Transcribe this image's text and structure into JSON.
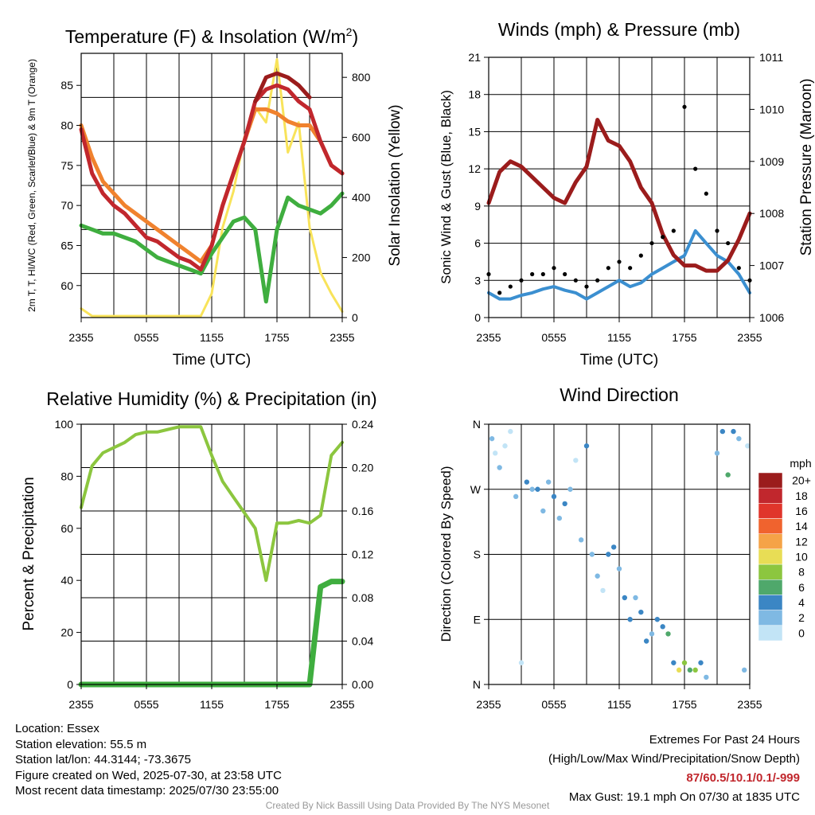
{
  "panels": {
    "temperature": {
      "title": "Temperature (F) & Insolation (W/m",
      "title_sup": "2",
      "title_end": ")",
      "xlabel": "Time (UTC)",
      "ylabel_left": "2m T, T, HI/WC (Red, Green, Scarlet/Blue) & 9m T (Orange)",
      "ylabel_right": "Solar Insolation (Yellow)",
      "yticks_left": [
        "60",
        "65",
        "70",
        "75",
        "80",
        "85"
      ],
      "yticks_right": [
        "0",
        "200",
        "400",
        "600",
        "800"
      ],
      "xticks": [
        "2355",
        "0555",
        "1155",
        "1755",
        "2355"
      ]
    },
    "winds": {
      "title": "Winds (mph) & Pressure (mb)",
      "xlabel": "Time (UTC)",
      "ylabel_left": "Sonic Wind & Gust (Blue, Black)",
      "ylabel_right": "Station Pressure (Maroon)",
      "yticks_left": [
        "0",
        "3",
        "6",
        "9",
        "12",
        "15",
        "18",
        "21"
      ],
      "yticks_right": [
        "1006",
        "1007",
        "1008",
        "1009",
        "1010",
        "1011"
      ],
      "xticks": [
        "2355",
        "0555",
        "1155",
        "1755",
        "2355"
      ]
    },
    "humidity": {
      "title": "Relative Humidity (%) & Precipitation (in)",
      "ylabel_left": "Percent & Precipitation",
      "yticks_left": [
        "0",
        "20",
        "40",
        "60",
        "80",
        "100"
      ],
      "yticks_right": [
        "0.00",
        "0.04",
        "0.08",
        "0.12",
        "0.16",
        "0.20",
        "0.24"
      ],
      "xticks": [
        "2355",
        "0555",
        "1155",
        "1755",
        "2355"
      ]
    },
    "direction": {
      "title": "Wind Direction",
      "ylabel_left": "Direction (Colored By Speed)",
      "yticks_left": [
        "N",
        "E",
        "S",
        "W",
        "N"
      ],
      "xticks": [
        "2355",
        "0555",
        "1155",
        "1755",
        "2355"
      ],
      "colorbar_unit": "mph",
      "colorbar_labels": [
        "20+",
        "18",
        "16",
        "14",
        "12",
        "10",
        "8",
        "6",
        "4",
        "2",
        "0"
      ],
      "colorbar_colors": [
        "#9b1c1c",
        "#c1272d",
        "#e0352b",
        "#f0632e",
        "#f5a347",
        "#e8dd55",
        "#8cc63f",
        "#4fa86b",
        "#3b86c4",
        "#7fb9e3",
        "#c2e4f6"
      ]
    }
  },
  "info": {
    "location": "Location: Essex",
    "elevation": "Station elevation: 55.5 m",
    "latlon": "Station lat/lon: 44.3144; -73.3675",
    "created": "Figure created on Wed, 2025-07-30, at 23:58 UTC",
    "recent": "Most recent data timestamp: 2025/07/30 23:55:00",
    "extremes_title": "Extremes For Past 24 Hours",
    "extremes_sub": "(High/Low/Max Wind/Precipitation/Snow Depth)",
    "extremes_values": "87/60.5/10.1/0.1/-999",
    "max_gust": "Max Gust: 19.1 mph On 07/30 at 1835 UTC",
    "credit": "Created By Nick Bassill Using Data Provided By The NYS Mesonet"
  },
  "colors": {
    "temp_red": "#c1272d",
    "dewpoint_green": "#3fae3f",
    "heat_index_scarlet": "#9b1c1c",
    "temp_9m_orange": "#f0822e",
    "insolation_yellow": "#f8e35a",
    "wind_blue": "#3b8fd0",
    "gust_black": "#000000",
    "pressure_maroon": "#9b1c1c",
    "rh_green": "#8cc63f",
    "precip_green": "#3fae3f"
  },
  "chart_data": [
    {
      "type": "line",
      "title": "Temperature (F) & Insolation (W/m2)",
      "xlabel": "Time (UTC)",
      "ylabel": "2m T, Td, HI/WC (Red, Green, Scarlet/Blue) & 9m T (Orange)",
      "y2label": "Solar Insolation (Yellow)",
      "x_hours": [
        0,
        1,
        2,
        3,
        4,
        5,
        6,
        7,
        8,
        9,
        10,
        11,
        12,
        13,
        14,
        15,
        16,
        17,
        18,
        19,
        20,
        21,
        22,
        23,
        24
      ],
      "ylim": [
        56,
        89
      ],
      "y2lim": [
        0,
        880
      ],
      "series": [
        {
          "name": "2m T",
          "axis": "left",
          "values": [
            79.5,
            74,
            71.5,
            70,
            69,
            67.5,
            66,
            65.5,
            64.5,
            63.5,
            63,
            62,
            65,
            70,
            74,
            78,
            83,
            84.5,
            85,
            84.5,
            83,
            82,
            78,
            75,
            74
          ]
        },
        {
          "name": "9m T",
          "axis": "left",
          "values": [
            80,
            76,
            73,
            71.5,
            70,
            69,
            68,
            67,
            66,
            65,
            64,
            63,
            65,
            70,
            74,
            78,
            82,
            82,
            81.5,
            80.5,
            80,
            80,
            78,
            75,
            74
          ]
        },
        {
          "name": "Td",
          "axis": "left",
          "values": [
            67.5,
            67,
            66.5,
            66.5,
            66,
            65.5,
            64.5,
            63.5,
            63,
            62.5,
            62,
            61.5,
            64,
            66,
            68,
            68.5,
            67,
            58,
            67,
            71,
            70,
            69.5,
            69,
            70,
            71.5
          ]
        },
        {
          "name": "HI",
          "axis": "left",
          "values": [
            null,
            null,
            null,
            null,
            null,
            null,
            null,
            null,
            null,
            null,
            null,
            null,
            null,
            null,
            null,
            null,
            83,
            86,
            86.5,
            86,
            85,
            83.5,
            null,
            null,
            null
          ]
        },
        {
          "name": "Insolation",
          "axis": "right",
          "values": [
            30,
            5,
            5,
            5,
            5,
            5,
            5,
            5,
            5,
            5,
            5,
            5,
            80,
            300,
            420,
            600,
            700,
            650,
            860,
            550,
            650,
            300,
            150,
            80,
            20
          ]
        }
      ]
    },
    {
      "type": "line",
      "title": "Winds (mph) & Pressure (mb)",
      "xlabel": "Time (UTC)",
      "ylabel": "Sonic Wind & Gust (Blue, Black)",
      "y2label": "Station Pressure (Maroon)",
      "x_hours": [
        0,
        1,
        2,
        3,
        4,
        5,
        6,
        7,
        8,
        9,
        10,
        11,
        12,
        13,
        14,
        15,
        16,
        17,
        18,
        19,
        20,
        21,
        22,
        23,
        24
      ],
      "ylim": [
        0,
        21
      ],
      "y2lim": [
        1006,
        1011
      ],
      "series": [
        {
          "name": "Sonic Wind",
          "axis": "left",
          "values": [
            2,
            1.5,
            1.5,
            1.8,
            2,
            2.3,
            2.5,
            2.2,
            2,
            1.5,
            2,
            2.5,
            3,
            2.5,
            2.8,
            3.5,
            4,
            4.5,
            5,
            7,
            6,
            5,
            4.5,
            3.5,
            2
          ]
        },
        {
          "name": "Gust",
          "axis": "left",
          "values": [
            3.5,
            2,
            2.5,
            3,
            3.5,
            3.5,
            4,
            3.5,
            3,
            2.5,
            3,
            4,
            4.5,
            4,
            5,
            6,
            6.5,
            7,
            17,
            12,
            10,
            7,
            6,
            4,
            3
          ]
        },
        {
          "name": "Station Pressure",
          "axis": "right",
          "values": [
            1008.2,
            1008.8,
            1009,
            1008.9,
            1008.7,
            1008.5,
            1008.3,
            1008.2,
            1008.6,
            1008.9,
            1009.8,
            1009.4,
            1009.3,
            1009,
            1008.5,
            1008.2,
            1007.6,
            1007.2,
            1007,
            1007,
            1006.9,
            1006.9,
            1007.1,
            1007.5,
            1008
          ]
        }
      ]
    },
    {
      "type": "line",
      "title": "Relative Humidity (%) & Precipitation (in)",
      "ylabel": "Percent & Precipitation",
      "x_hours": [
        0,
        1,
        2,
        3,
        4,
        5,
        6,
        7,
        8,
        9,
        10,
        11,
        12,
        13,
        14,
        15,
        16,
        17,
        18,
        19,
        20,
        21,
        22,
        23,
        24
      ],
      "ylim": [
        0,
        100
      ],
      "y2lim": [
        0,
        0.24
      ],
      "series": [
        {
          "name": "Relative Humidity",
          "axis": "left",
          "values": [
            68,
            84,
            89,
            91,
            93,
            96,
            97,
            97,
            98,
            99,
            99,
            99,
            88,
            78,
            72,
            66,
            60,
            40,
            62,
            62,
            63,
            62,
            65,
            88,
            93
          ]
        },
        {
          "name": "Precipitation",
          "axis": "right",
          "values": [
            0,
            0,
            0,
            0,
            0,
            0,
            0,
            0,
            0,
            0,
            0,
            0,
            0,
            0,
            0,
            0,
            0,
            0,
            0,
            0,
            0,
            0,
            0.09,
            0.095,
            0.095
          ]
        }
      ]
    },
    {
      "type": "scatter",
      "title": "Wind Direction",
      "ylabel": "Direction (Colored By Speed)",
      "x_hours_range": [
        0,
        24
      ],
      "y_deg_range": [
        0,
        360
      ],
      "points": [
        {
          "x": 0.3,
          "y": 340,
          "speed": 2
        },
        {
          "x": 0.6,
          "y": 320,
          "speed": 0
        },
        {
          "x": 1.0,
          "y": 300,
          "speed": 2
        },
        {
          "x": 1.5,
          "y": 330,
          "speed": 0
        },
        {
          "x": 2.0,
          "y": 350,
          "speed": 0
        },
        {
          "x": 2.5,
          "y": 260,
          "speed": 2
        },
        {
          "x": 3.0,
          "y": 30,
          "speed": 0
        },
        {
          "x": 3.5,
          "y": 280,
          "speed": 4
        },
        {
          "x": 4.0,
          "y": 270,
          "speed": 2
        },
        {
          "x": 4.5,
          "y": 270,
          "speed": 4
        },
        {
          "x": 5.0,
          "y": 240,
          "speed": 2
        },
        {
          "x": 5.5,
          "y": 280,
          "speed": 2
        },
        {
          "x": 6.0,
          "y": 260,
          "speed": 4
        },
        {
          "x": 6.5,
          "y": 230,
          "speed": 2
        },
        {
          "x": 7.0,
          "y": 250,
          "speed": 4
        },
        {
          "x": 7.5,
          "y": 270,
          "speed": 2
        },
        {
          "x": 8.0,
          "y": 310,
          "speed": 0
        },
        {
          "x": 8.5,
          "y": 200,
          "speed": 2
        },
        {
          "x": 9.0,
          "y": 330,
          "speed": 4
        },
        {
          "x": 9.5,
          "y": 180,
          "speed": 2
        },
        {
          "x": 10.0,
          "y": 150,
          "speed": 2
        },
        {
          "x": 10.5,
          "y": 130,
          "speed": 0
        },
        {
          "x": 11.0,
          "y": 180,
          "speed": 4
        },
        {
          "x": 11.5,
          "y": 190,
          "speed": 4
        },
        {
          "x": 12.0,
          "y": 160,
          "speed": 2
        },
        {
          "x": 12.5,
          "y": 120,
          "speed": 4
        },
        {
          "x": 13.0,
          "y": 90,
          "speed": 4
        },
        {
          "x": 13.5,
          "y": 120,
          "speed": 2
        },
        {
          "x": 14.0,
          "y": 100,
          "speed": 4
        },
        {
          "x": 14.5,
          "y": 60,
          "speed": 4
        },
        {
          "x": 15.0,
          "y": 70,
          "speed": 2
        },
        {
          "x": 15.5,
          "y": 90,
          "speed": 4
        },
        {
          "x": 16.0,
          "y": 80,
          "speed": 4
        },
        {
          "x": 16.5,
          "y": 70,
          "speed": 6
        },
        {
          "x": 17.0,
          "y": 30,
          "speed": 4
        },
        {
          "x": 17.5,
          "y": 20,
          "speed": 10
        },
        {
          "x": 18.0,
          "y": 30,
          "speed": 8
        },
        {
          "x": 18.5,
          "y": 20,
          "speed": 6
        },
        {
          "x": 19.0,
          "y": 20,
          "speed": 8
        },
        {
          "x": 19.5,
          "y": 30,
          "speed": 4
        },
        {
          "x": 20.0,
          "y": 10,
          "speed": 2
        },
        {
          "x": 21.0,
          "y": 320,
          "speed": 2
        },
        {
          "x": 21.5,
          "y": 350,
          "speed": 4
        },
        {
          "x": 22.0,
          "y": 290,
          "speed": 6
        },
        {
          "x": 22.5,
          "y": 350,
          "speed": 4
        },
        {
          "x": 23.0,
          "y": 340,
          "speed": 2
        },
        {
          "x": 23.5,
          "y": 20,
          "speed": 2
        },
        {
          "x": 23.8,
          "y": 330,
          "speed": 0
        }
      ]
    }
  ]
}
